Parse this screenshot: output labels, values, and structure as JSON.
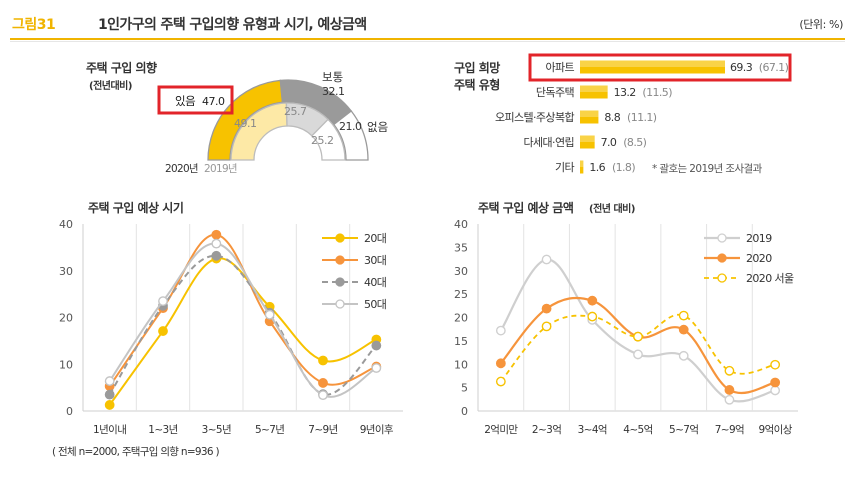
{
  "header": {
    "figure_label": "그림31",
    "title": "1인가구의 주택 구입의향 유형과 시기, 예상금액",
    "unit": "(단위: %)"
  },
  "footnote": "( 전체 n=2000, 주택구입 의향 n=936 )",
  "colors": {
    "gold": "#f7c200",
    "gold_light": "#fde9a6",
    "orange": "#f6943c",
    "gray": "#9a9a9a",
    "gray_light": "#d9d9d9",
    "highlight": "#e2242a"
  },
  "chart_data": [
    {
      "type": "gauge",
      "title": "주택 구입 의향",
      "subtitle": "(전년대비)",
      "categories": [
        "있음",
        "보통",
        "없음"
      ],
      "series": [
        {
          "name": "2020년",
          "values": [
            47.0,
            32.1,
            21.0
          ],
          "labels": [
            "47.0",
            "32.1",
            "21.0"
          ]
        },
        {
          "name": "2019년",
          "values": [
            49.1,
            25.7,
            25.2
          ],
          "labels": [
            "49.1",
            "25.7",
            "25.2"
          ]
        }
      ],
      "highlight_label": "있음",
      "highlight_value": "47.0"
    },
    {
      "type": "bar",
      "orientation": "horizontal",
      "title_line1": "구입 희망",
      "title_line2": "주택 유형",
      "categories": [
        "아파트",
        "단독주택",
        "오피스텔·주상복합",
        "다세대·연립",
        "기타"
      ],
      "values": [
        69.3,
        13.2,
        8.8,
        7.0,
        1.6
      ],
      "value_labels": [
        "69.3",
        "13.2",
        "8.8",
        "7.0",
        "1.6"
      ],
      "prev_labels": [
        "(67.1)",
        "(11.5)",
        "(11.1)",
        "(8.5)",
        "(1.8)"
      ],
      "note": "* 괄호는 2019년 조사결과"
    },
    {
      "type": "line",
      "title": "주택 구입 예상 시기",
      "categories": [
        "1년이내",
        "1~3년",
        "3~5년",
        "5~7년",
        "7~9년",
        "9년이후"
      ],
      "ylim": [
        0,
        40
      ],
      "yticks": [
        "0",
        "10",
        "20",
        "30",
        "40"
      ],
      "series": [
        {
          "name": "20대",
          "values": [
            1.3,
            17.1,
            32.6,
            22.3,
            10.8,
            15.3
          ]
        },
        {
          "name": "30대",
          "values": [
            5.3,
            22.0,
            37.7,
            19.2,
            6.0,
            9.5
          ]
        },
        {
          "name": "40대",
          "values": [
            3.5,
            22.5,
            33.2,
            21.0,
            3.6,
            14.0
          ]
        },
        {
          "name": "50대",
          "values": [
            6.4,
            23.5,
            35.8,
            20.6,
            3.4,
            9.2
          ]
        }
      ],
      "legend": "top-right"
    },
    {
      "type": "line",
      "title": "주택 구입 예상 금액",
      "subtitle": "(전년 대비)",
      "categories": [
        "2억미만",
        "2~3억",
        "3~4억",
        "4~5억",
        "5~7억",
        "7~9억",
        "9억이상"
      ],
      "ylim": [
        0,
        40
      ],
      "yticks": [
        "0",
        "5",
        "10",
        "15",
        "20",
        "25",
        "30",
        "35",
        "40"
      ],
      "series": [
        {
          "name": "2019",
          "values": [
            17.2,
            32.4,
            19.5,
            12.1,
            11.8,
            2.4,
            4.4
          ]
        },
        {
          "name": "2020",
          "values": [
            10.2,
            21.9,
            23.6,
            15.9,
            17.4,
            4.5,
            6.1
          ]
        },
        {
          "name": "2020 서울",
          "values": [
            6.3,
            18.1,
            20.2,
            15.9,
            20.4,
            8.6,
            9.9
          ]
        }
      ],
      "legend": "top-right"
    }
  ]
}
